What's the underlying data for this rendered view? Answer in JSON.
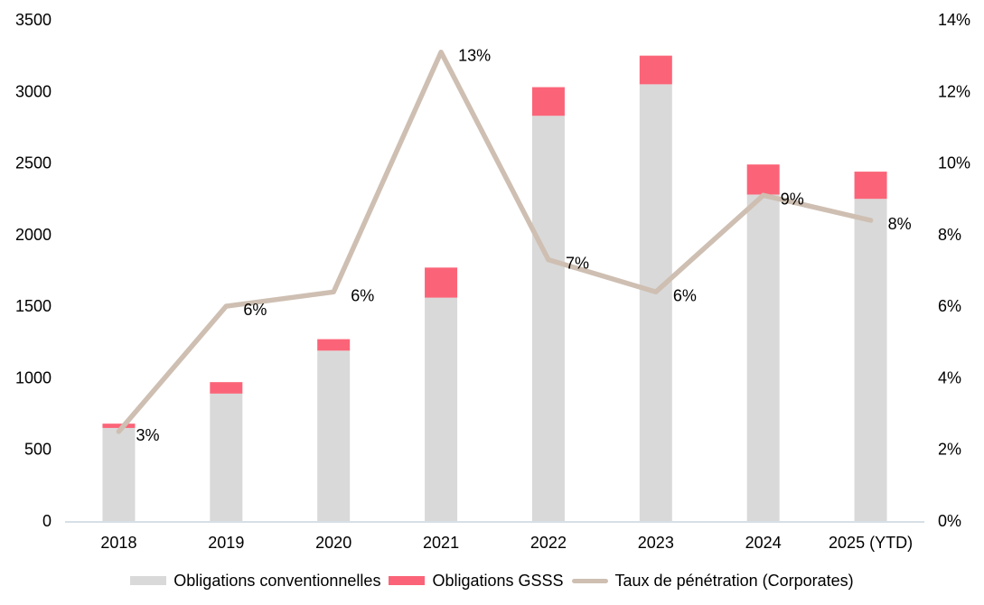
{
  "chart_data": {
    "type": "bar",
    "subtype": "stacked-bars-with-line-overlay",
    "title": "",
    "categories": [
      "2018",
      "2019",
      "2020",
      "2021",
      "2022",
      "2023",
      "2024",
      "2025 (YTD)"
    ],
    "series": [
      {
        "name": "Obligations conventionnelles",
        "type": "bar",
        "axis": "left",
        "color": "#D9D9D9",
        "values": [
          650,
          890,
          1190,
          1560,
          2830,
          3050,
          2280,
          2250
        ]
      },
      {
        "name": "Obligations GSSS",
        "type": "bar",
        "axis": "left",
        "color": "#FB6478",
        "values": [
          30,
          80,
          80,
          210,
          200,
          200,
          210,
          190
        ]
      },
      {
        "name": "Taux de pénétration (Corporates)",
        "type": "line",
        "axis": "right",
        "color": "#CEBFB2",
        "values": [
          2.5,
          6.0,
          6.4,
          13.1,
          7.3,
          6.4,
          9.1,
          8.4
        ],
        "point_labels": [
          "3%",
          "6%",
          "6%",
          "13%",
          "7%",
          "6%",
          "9%",
          "8%"
        ]
      }
    ],
    "axes": {
      "left": {
        "min": 0,
        "max": 3500,
        "step": 500,
        "ticks": [
          "0",
          "500",
          "1000",
          "1500",
          "2000",
          "2500",
          "3000",
          "3500"
        ]
      },
      "right": {
        "min": 0,
        "max": 14,
        "step": 2,
        "ticks": [
          "0%",
          "2%",
          "4%",
          "6%",
          "8%",
          "10%",
          "12%",
          "14%"
        ]
      }
    },
    "grid": false,
    "legend_position": "bottom",
    "colors": {
      "background": "#FFFFFF",
      "axis_line": "#D6E0E6",
      "text": "#000000"
    }
  }
}
